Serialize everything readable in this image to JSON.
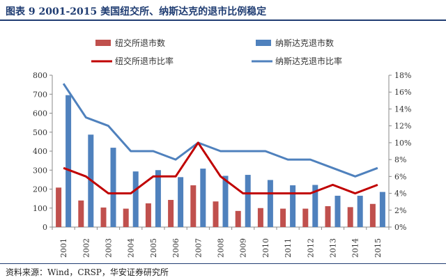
{
  "title": "图表 9 2001-2015 美国纽交所、纳斯达克的退市比例稳定",
  "source": "资料来源：Wind，CRSP，华安证券研究所",
  "colors": {
    "title": "#1f3c72",
    "nyse_bar": "#c0504d",
    "nasdaq_bar": "#4f81bd",
    "nyse_line": "#c00000",
    "nasdaq_line": "#4f81bd"
  },
  "chart_data": {
    "type": "bar",
    "categories": [
      "2001",
      "2002",
      "2003",
      "2004",
      "2005",
      "2006",
      "2007",
      "2008",
      "2009",
      "2010",
      "2011",
      "2012",
      "2013",
      "2014",
      "2015"
    ],
    "ylim": [
      0,
      800
    ],
    "y_ticks": [
      "0",
      "100",
      "200",
      "300",
      "400",
      "500",
      "600",
      "700",
      "800"
    ],
    "y2lim": [
      0,
      18
    ],
    "y2_ticks": [
      "0%",
      "2%",
      "4%",
      "6%",
      "8%",
      "10%",
      "12%",
      "14%",
      "16%",
      "18%"
    ],
    "legend_position": "top",
    "series": [
      {
        "name": "纽交所退市数",
        "type": "bar",
        "axis": "left",
        "values": [
          208,
          140,
          103,
          97,
          125,
          143,
          220,
          135,
          85,
          100,
          97,
          97,
          110,
          105,
          122
        ]
      },
      {
        "name": "纳斯达克退市数",
        "type": "bar",
        "axis": "left",
        "values": [
          695,
          487,
          418,
          293,
          300,
          263,
          308,
          270,
          275,
          248,
          220,
          222,
          165,
          165,
          185
        ]
      },
      {
        "name": "纽交所退市比率",
        "type": "line",
        "axis": "right",
        "unit": "%",
        "values": [
          7,
          6,
          4,
          4,
          6,
          6,
          10,
          6,
          4,
          4,
          4,
          4,
          5,
          4,
          5
        ]
      },
      {
        "name": "纳斯达克退市比率",
        "type": "line",
        "axis": "right",
        "unit": "%",
        "values": [
          17,
          13,
          12,
          9,
          9,
          8,
          10,
          9,
          9,
          9,
          8,
          8,
          7,
          6,
          7
        ]
      }
    ]
  }
}
